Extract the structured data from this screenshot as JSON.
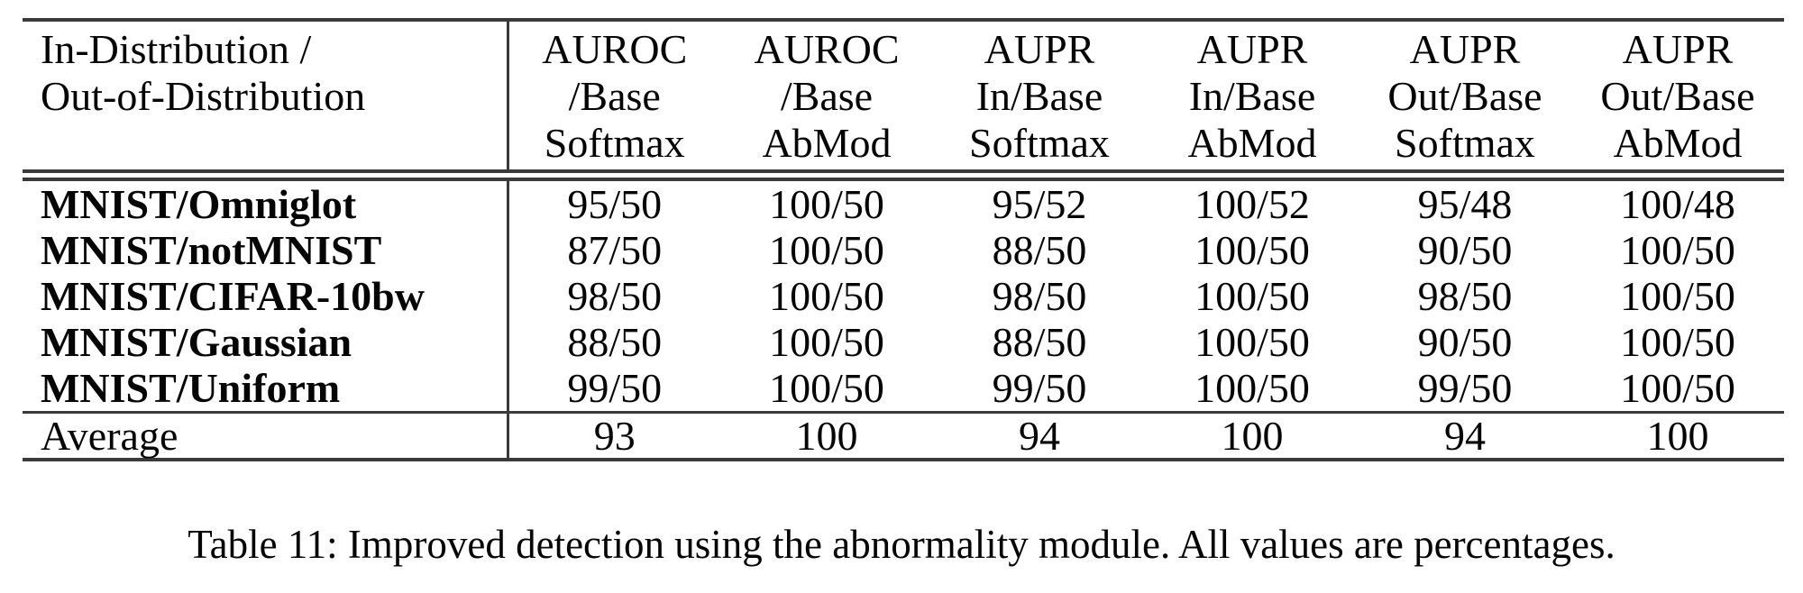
{
  "table": {
    "header": {
      "stub_lines": [
        "In-Distribution /",
        "Out-of-Distribution"
      ],
      "columns": [
        [
          "AUROC",
          "/Base",
          "Softmax"
        ],
        [
          "AUROC",
          "/Base",
          "AbMod"
        ],
        [
          "AUPR",
          "In/Base",
          "Softmax"
        ],
        [
          "AUPR",
          "In/Base",
          "AbMod"
        ],
        [
          "AUPR",
          "Out/Base",
          "Softmax"
        ],
        [
          "AUPR",
          "Out/Base",
          "AbMod"
        ]
      ]
    },
    "rows": [
      {
        "label": "MNIST/Omniglot",
        "values": [
          "95/50",
          "100/50",
          "95/52",
          "100/52",
          "95/48",
          "100/48"
        ]
      },
      {
        "label": "MNIST/notMNIST",
        "values": [
          "87/50",
          "100/50",
          "88/50",
          "100/50",
          "90/50",
          "100/50"
        ]
      },
      {
        "label": "MNIST/CIFAR-10bw",
        "values": [
          "98/50",
          "100/50",
          "98/50",
          "100/50",
          "98/50",
          "100/50"
        ]
      },
      {
        "label": "MNIST/Gaussian",
        "values": [
          "88/50",
          "100/50",
          "88/50",
          "100/50",
          "90/50",
          "100/50"
        ]
      },
      {
        "label": "MNIST/Uniform",
        "values": [
          "99/50",
          "100/50",
          "99/50",
          "100/50",
          "99/50",
          "100/50"
        ]
      }
    ],
    "summary_row": {
      "label": "Average",
      "values": [
        "93",
        "100",
        "94",
        "100",
        "94",
        "100"
      ]
    }
  },
  "caption": "Table 11: Improved detection using the abnormality module. All values are percentages.",
  "colors": {
    "text": "#050505",
    "rule": "#3a3a3a",
    "background": "#ffffff"
  }
}
